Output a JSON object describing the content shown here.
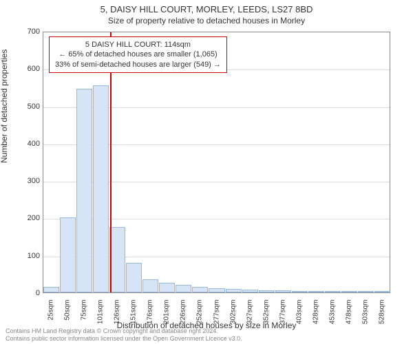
{
  "title_main": "5, DAISY HILL COURT, MORLEY, LEEDS, LS27 8BD",
  "title_sub": "Size of property relative to detached houses in Morley",
  "ylabel": "Number of detached properties",
  "xlabel": "Distribution of detached houses by size in Morley",
  "footer_line1": "Contains HM Land Registry data © Crown copyright and database right 2024.",
  "footer_line2": "Contains public sector information licensed under the Open Government Licence v3.0.",
  "callout": {
    "line1": "5 DAISY HILL COURT: 114sqm",
    "line2": "← 65% of detached houses are smaller (1,065)",
    "line3": "33% of semi-detached houses are larger (549) →"
  },
  "chart": {
    "type": "histogram",
    "ylim": [
      0,
      700
    ],
    "ytick_step": 100,
    "yticks": [
      0,
      100,
      200,
      300,
      400,
      500,
      600,
      700
    ],
    "xcategories": [
      "25sqm",
      "50sqm",
      "75sqm",
      "101sqm",
      "126sqm",
      "151sqm",
      "176sqm",
      "201sqm",
      "226sqm",
      "252sqm",
      "277sqm",
      "302sqm",
      "327sqm",
      "352sqm",
      "377sqm",
      "403sqm",
      "428sqm",
      "453sqm",
      "478sqm",
      "503sqm",
      "528sqm"
    ],
    "values": [
      15,
      200,
      545,
      555,
      175,
      80,
      35,
      25,
      20,
      15,
      12,
      10,
      8,
      6,
      5,
      4,
      3,
      2,
      2,
      1,
      1
    ],
    "bar_fill": "#d6e4f5",
    "bar_stroke": "#99b8db",
    "grid_color": "#dddddd",
    "axis_color": "#888888",
    "marker_color": "#cc0000",
    "marker_position_sqm": 114,
    "background": "#ffffff",
    "text_color": "#333333",
    "title_fontsize": 13,
    "label_fontsize": 12,
    "tick_fontsize": 11
  }
}
